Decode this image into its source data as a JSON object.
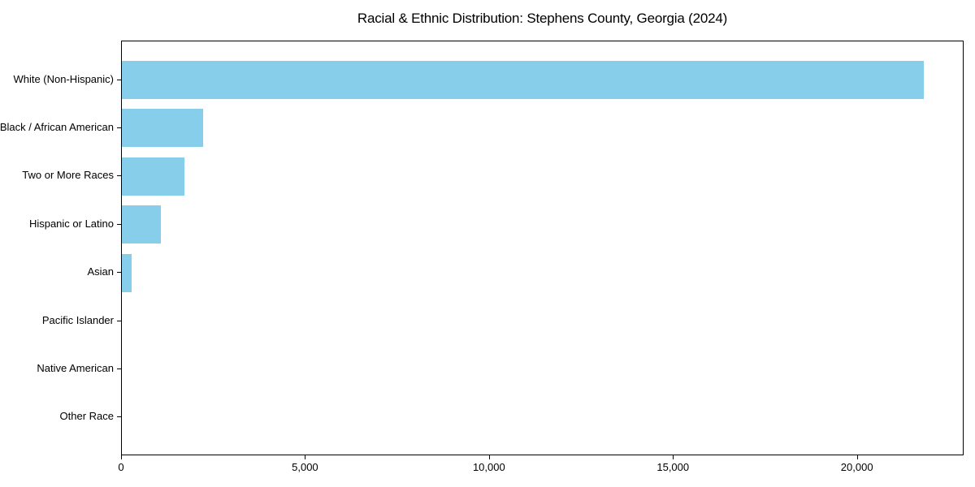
{
  "chart_data": {
    "type": "bar",
    "orientation": "horizontal",
    "title": "Racial & Ethnic Distribution: Stephens County, Georgia (2024)",
    "categories": [
      "White (Non-Hispanic)",
      "Black / African American",
      "Two or More Races",
      "Hispanic or Latino",
      "Asian",
      "Pacific Islander",
      "Native American",
      "Other Race"
    ],
    "values": [
      21800,
      2200,
      1700,
      1050,
      260,
      0,
      0,
      0
    ],
    "xlabel": "",
    "ylabel": "",
    "xlim": [
      0,
      22900
    ],
    "x_ticks": [
      0,
      5000,
      10000,
      15000,
      20000
    ],
    "x_tick_labels": [
      "0",
      "5,000",
      "10,000",
      "15,000",
      "20,000"
    ],
    "bar_color": "#87CEEB",
    "background_color": "#ffffff",
    "spine_color": "#000000",
    "grid": false,
    "legend": null
  }
}
